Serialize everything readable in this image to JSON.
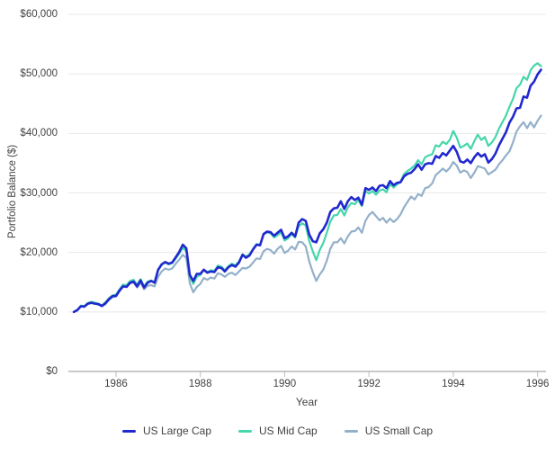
{
  "chart_data": {
    "type": "line",
    "title": "",
    "xlabel": "Year",
    "ylabel": "Portfolio Balance ($)",
    "grid": true,
    "legend_position": "bottom",
    "xlim": [
      1984.87,
      1996.2
    ],
    "ylim": [
      0,
      60000
    ],
    "x_start_year": 1985.0,
    "x_interval_years": 0.0833333,
    "x_ticks": [
      1986,
      1988,
      1990,
      1992,
      1994,
      1996
    ],
    "x_tick_labels": [
      "1986",
      "1988",
      "1990",
      "1992",
      "1994",
      "1996"
    ],
    "y_ticks": [
      0,
      10000,
      20000,
      30000,
      40000,
      50000,
      60000
    ],
    "y_tick_labels": [
      "$0",
      "$10,000",
      "$20,000",
      "$30,000",
      "$40,000",
      "$50,000",
      "$60,000"
    ],
    "colors": {
      "grid": "#e8e8e8",
      "axis": "#a9a9a9",
      "tick": "#bdbdbd",
      "label": "#424242",
      "background": "#ffffff"
    },
    "series": [
      {
        "name": "US Large Cap",
        "color": "#2128cf",
        "values": [
          10000,
          10300,
          10950,
          10900,
          11400,
          11550,
          11400,
          11300,
          11000,
          11450,
          12150,
          12650,
          12700,
          13600,
          14300,
          14200,
          14900,
          15100,
          14300,
          15300,
          14100,
          14900,
          15200,
          14900,
          17100,
          18000,
          18400,
          18100,
          18300,
          19200,
          20100,
          21300,
          20700,
          16200,
          15200,
          16400,
          16400,
          17100,
          16600,
          16800,
          16700,
          17500,
          17400,
          16800,
          17500,
          17900,
          17600,
          18300,
          19600,
          19100,
          19500,
          20500,
          21300,
          21200,
          23100,
          23500,
          23400,
          22800,
          23300,
          23800,
          22400,
          22700,
          23300,
          22700,
          25000,
          25600,
          25300,
          23000,
          21900,
          21700,
          23200,
          23900,
          25000,
          26800,
          27400,
          27500,
          28600,
          27300,
          28600,
          29300,
          28800,
          29200,
          28000,
          30800,
          30500,
          30900,
          30300,
          31200,
          31300,
          30800,
          32000,
          31300,
          31700,
          31800,
          32800,
          33200,
          33400,
          34000,
          34800,
          33900,
          34800,
          35000,
          34900,
          36200,
          35900,
          36700,
          36300,
          37100,
          37900,
          36900,
          35300,
          35100,
          35600,
          35000,
          36000,
          36700,
          36100,
          36500,
          35100,
          35700,
          36600,
          38000,
          39100,
          40200,
          41800,
          42800,
          44200,
          44300,
          46200,
          46000,
          48000,
          48700,
          49900,
          50700
        ]
      },
      {
        "name": "US Mid Cap",
        "color": "#45d6ab",
        "values": [
          10000,
          10350,
          11050,
          11000,
          11500,
          11700,
          11550,
          11400,
          11100,
          11600,
          12300,
          12800,
          12900,
          13800,
          14600,
          14500,
          15200,
          15400,
          14600,
          15500,
          14300,
          15100,
          15300,
          15000,
          17000,
          17900,
          18300,
          18000,
          18200,
          19000,
          19800,
          20800,
          20200,
          15900,
          14700,
          15900,
          16200,
          17100,
          16700,
          17000,
          16900,
          17800,
          17600,
          17000,
          17700,
          18100,
          17800,
          18500,
          19700,
          19300,
          19700,
          20600,
          21400,
          21300,
          23000,
          23400,
          23200,
          22500,
          22900,
          23400,
          22000,
          22400,
          23100,
          22500,
          24400,
          24900,
          24500,
          21900,
          20200,
          18700,
          20400,
          21600,
          23300,
          25200,
          26200,
          26300,
          27300,
          26200,
          27600,
          28300,
          28100,
          28800,
          27800,
          30300,
          29900,
          30300,
          29700,
          30400,
          30600,
          30100,
          31500,
          30900,
          31400,
          31900,
          33200,
          33700,
          34100,
          34600,
          35500,
          34800,
          36000,
          36300,
          36500,
          38000,
          37800,
          38600,
          38200,
          38900,
          40400,
          39300,
          37600,
          37900,
          38300,
          37400,
          38700,
          39800,
          38900,
          39400,
          37900,
          38500,
          39400,
          40800,
          41900,
          43000,
          44500,
          45800,
          47600,
          48200,
          49500,
          49000,
          50600,
          51400,
          51800,
          51300
        ]
      },
      {
        "name": "US Small Cap",
        "color": "#93b0ca",
        "values": [
          10000,
          10300,
          10950,
          10900,
          11350,
          11500,
          11400,
          11250,
          10950,
          11300,
          12000,
          12500,
          12600,
          13500,
          14250,
          14200,
          14800,
          15000,
          14100,
          14900,
          13800,
          14400,
          14500,
          14300,
          15900,
          16800,
          17300,
          17100,
          17300,
          18100,
          18800,
          19600,
          19100,
          14800,
          13300,
          14200,
          14700,
          15700,
          15400,
          15800,
          15600,
          16500,
          16300,
          15900,
          16400,
          16600,
          16200,
          16800,
          17400,
          17300,
          17600,
          18300,
          19000,
          18900,
          20200,
          20600,
          20400,
          19800,
          20600,
          21100,
          19900,
          20300,
          21000,
          20500,
          21800,
          21700,
          21000,
          18500,
          16700,
          15200,
          16300,
          17100,
          18600,
          20600,
          21700,
          21700,
          22400,
          21500,
          22700,
          23500,
          23600,
          24200,
          23300,
          25300,
          26300,
          26800,
          26100,
          25400,
          25800,
          25000,
          25700,
          25100,
          25600,
          26400,
          27600,
          28500,
          29400,
          28900,
          29800,
          29500,
          30800,
          31000,
          31600,
          33000,
          33500,
          34100,
          33600,
          34200,
          35200,
          34600,
          33400,
          33800,
          33500,
          32500,
          33400,
          34500,
          34300,
          34100,
          33100,
          33500,
          33900,
          34800,
          35500,
          36300,
          37000,
          38500,
          40300,
          41200,
          41900,
          40900,
          41900,
          41000,
          42100,
          43000
        ]
      }
    ]
  }
}
